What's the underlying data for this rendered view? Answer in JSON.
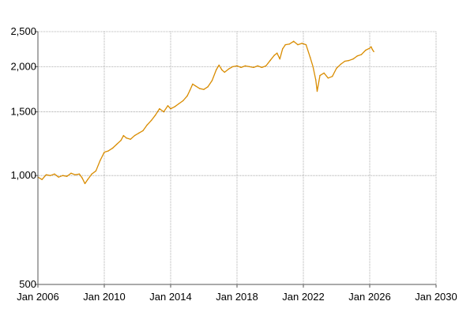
{
  "chart_data": {
    "type": "line",
    "title": "",
    "xlabel": "",
    "ylabel": "",
    "y_scale": "log",
    "xlim": [
      "2006-01-01",
      "2030-01-01"
    ],
    "ylim": [
      500,
      2500
    ],
    "grid": true,
    "x_ticks": [
      {
        "date": "2006-01-01",
        "label": "Jan 2006"
      },
      {
        "date": "2010-01-01",
        "label": "Jan 2010"
      },
      {
        "date": "2014-01-01",
        "label": "Jan 2014"
      },
      {
        "date": "2018-01-01",
        "label": "Jan 2018"
      },
      {
        "date": "2022-01-01",
        "label": "Jan 2022"
      },
      {
        "date": "2026-01-01",
        "label": "Jan 2026"
      },
      {
        "date": "2030-01-01",
        "label": "Jan 2030"
      }
    ],
    "y_ticks": [
      {
        "value": 500,
        "label": "500"
      },
      {
        "value": 1000,
        "label": "1,000"
      },
      {
        "value": 1500,
        "label": "1,500"
      },
      {
        "value": 2000,
        "label": "2,000"
      },
      {
        "value": 2500,
        "label": "2,500"
      }
    ],
    "series": [
      {
        "name": "",
        "color": "#d98c00",
        "points": [
          [
            "2006-01-01",
            990
          ],
          [
            "2006-04-01",
            975
          ],
          [
            "2006-07-01",
            1005
          ],
          [
            "2006-10-01",
            1000
          ],
          [
            "2007-01-01",
            1010
          ],
          [
            "2007-04-01",
            990
          ],
          [
            "2007-07-01",
            1000
          ],
          [
            "2007-10-01",
            995
          ],
          [
            "2008-01-01",
            1015
          ],
          [
            "2008-04-01",
            1005
          ],
          [
            "2008-07-01",
            1010
          ],
          [
            "2008-09-01",
            985
          ],
          [
            "2008-11-01",
            950
          ],
          [
            "2009-01-01",
            975
          ],
          [
            "2009-04-01",
            1010
          ],
          [
            "2009-07-01",
            1030
          ],
          [
            "2009-10-01",
            1100
          ],
          [
            "2010-01-01",
            1160
          ],
          [
            "2010-04-01",
            1170
          ],
          [
            "2010-07-01",
            1190
          ],
          [
            "2010-10-01",
            1220
          ],
          [
            "2011-01-01",
            1250
          ],
          [
            "2011-03-01",
            1290
          ],
          [
            "2011-05-01",
            1270
          ],
          [
            "2011-08-01",
            1260
          ],
          [
            "2011-11-01",
            1290
          ],
          [
            "2012-02-01",
            1310
          ],
          [
            "2012-05-01",
            1330
          ],
          [
            "2012-08-01",
            1380
          ],
          [
            "2012-11-01",
            1420
          ],
          [
            "2013-02-01",
            1470
          ],
          [
            "2013-05-01",
            1530
          ],
          [
            "2013-08-01",
            1500
          ],
          [
            "2013-11-01",
            1560
          ],
          [
            "2014-01-01",
            1530
          ],
          [
            "2014-04-01",
            1550
          ],
          [
            "2014-07-01",
            1580
          ],
          [
            "2014-10-01",
            1610
          ],
          [
            "2015-01-01",
            1660
          ],
          [
            "2015-03-01",
            1720
          ],
          [
            "2015-05-01",
            1790
          ],
          [
            "2015-07-01",
            1770
          ],
          [
            "2015-10-01",
            1740
          ],
          [
            "2016-01-01",
            1730
          ],
          [
            "2016-04-01",
            1760
          ],
          [
            "2016-07-01",
            1830
          ],
          [
            "2016-10-01",
            1960
          ],
          [
            "2016-12-01",
            2020
          ],
          [
            "2017-02-01",
            1960
          ],
          [
            "2017-04-01",
            1930
          ],
          [
            "2017-07-01",
            1970
          ],
          [
            "2017-10-01",
            2000
          ],
          [
            "2018-01-01",
            2010
          ],
          [
            "2018-04-01",
            1990
          ],
          [
            "2018-07-01",
            2010
          ],
          [
            "2018-10-01",
            2000
          ],
          [
            "2019-01-01",
            1990
          ],
          [
            "2019-04-01",
            2010
          ],
          [
            "2019-07-01",
            1990
          ],
          [
            "2019-10-01",
            2010
          ],
          [
            "2020-01-01",
            2080
          ],
          [
            "2020-04-01",
            2150
          ],
          [
            "2020-06-01",
            2180
          ],
          [
            "2020-08-01",
            2100
          ],
          [
            "2020-10-01",
            2240
          ],
          [
            "2020-12-01",
            2300
          ],
          [
            "2021-03-01",
            2310
          ],
          [
            "2021-06-01",
            2350
          ],
          [
            "2021-09-01",
            2300
          ],
          [
            "2021-12-01",
            2320
          ],
          [
            "2022-03-01",
            2300
          ],
          [
            "2022-06-01",
            2120
          ],
          [
            "2022-08-01",
            2000
          ],
          [
            "2022-10-01",
            1840
          ],
          [
            "2022-11-01",
            1710
          ],
          [
            "2023-01-01",
            1890
          ],
          [
            "2023-04-01",
            1920
          ],
          [
            "2023-07-01",
            1860
          ],
          [
            "2023-10-01",
            1880
          ],
          [
            "2024-01-01",
            1980
          ],
          [
            "2024-04-01",
            2030
          ],
          [
            "2024-07-01",
            2070
          ],
          [
            "2024-10-01",
            2080
          ],
          [
            "2025-01-01",
            2100
          ],
          [
            "2025-04-01",
            2140
          ],
          [
            "2025-07-01",
            2160
          ],
          [
            "2025-10-01",
            2220
          ],
          [
            "2026-01-01",
            2250
          ],
          [
            "2026-02-01",
            2270
          ],
          [
            "2026-03-01",
            2230
          ],
          [
            "2026-04-01",
            2200
          ]
        ]
      }
    ]
  }
}
